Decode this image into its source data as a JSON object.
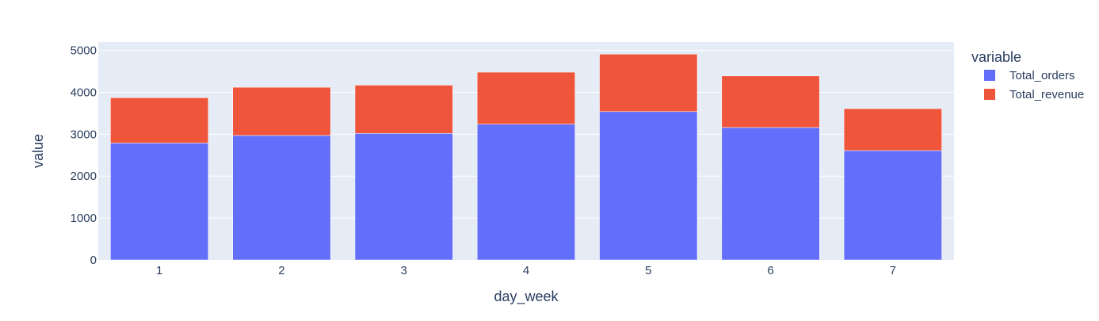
{
  "chart_data": {
    "type": "bar",
    "barmode": "stack",
    "categories": [
      "1",
      "2",
      "3",
      "4",
      "5",
      "6",
      "7"
    ],
    "series": [
      {
        "name": "Total_orders",
        "color": "#636efa",
        "values": [
          2790,
          2970,
          3020,
          3240,
          3540,
          3160,
          2610
        ]
      },
      {
        "name": "Total_revenue",
        "color": "#ef553b",
        "values": [
          1080,
          1150,
          1150,
          1240,
          1370,
          1230,
          1000
        ]
      }
    ],
    "xlabel": "day_week",
    "ylabel": "value",
    "ylim": [
      0,
      5200
    ],
    "yticks": [
      0,
      1000,
      2000,
      3000,
      4000,
      5000
    ],
    "grid": true,
    "legend": {
      "title": "variable",
      "position": "top-right"
    },
    "plot_bg": "#e5ecf6"
  }
}
